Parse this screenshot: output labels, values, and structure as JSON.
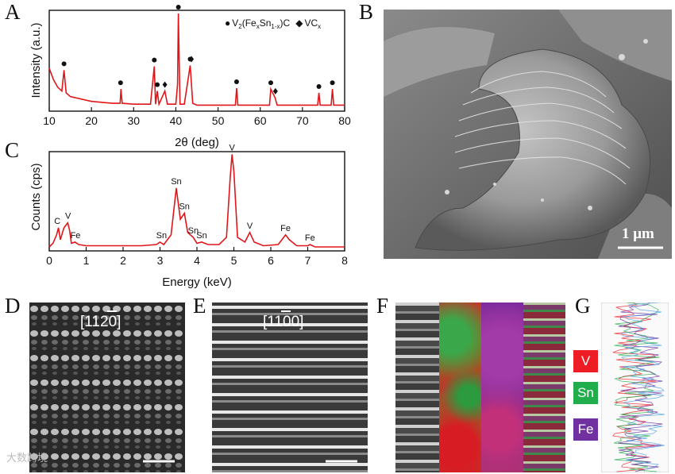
{
  "panels": {
    "A": "A",
    "B": "B",
    "C": "C",
    "D": "D",
    "E": "E",
    "F": "F",
    "G": "G"
  },
  "xrd": {
    "ylabel": "Intensity (a.u.)",
    "xlabel": "2θ (deg)",
    "xticks": [
      "10",
      "20",
      "30",
      "40",
      "50",
      "60",
      "70",
      "80"
    ],
    "legend": {
      "bullet": "●",
      "phase1_main": "V",
      "phase1_sub1": "2",
      "phase1_mid": "(Fe",
      "phase1_sub2": "x",
      "phase1_mid2": "Sn",
      "phase1_sub3": "1-x",
      "phase1_end": ")C",
      "diamond": "◆",
      "phase2_main": "VC",
      "phase2_sub": "x"
    }
  },
  "eds": {
    "ylabel": "Counts (cps)",
    "xlabel": "Energy (keV)",
    "xticks": [
      "0",
      "1",
      "2",
      "3",
      "4",
      "5",
      "6",
      "7",
      "8"
    ],
    "peak_labels": [
      {
        "text": "C",
        "e": 0.22
      },
      {
        "text": "V",
        "e": 0.51
      },
      {
        "text": "Fe",
        "e": 0.71
      },
      {
        "text": "Sn",
        "e": 3.04
      },
      {
        "text": "Sn",
        "e": 3.44
      },
      {
        "text": "Sn",
        "e": 3.66
      },
      {
        "text": "Sn",
        "e": 3.9
      },
      {
        "text": "Sn",
        "e": 4.13
      },
      {
        "text": "V",
        "e": 4.95
      },
      {
        "text": "V",
        "e": 5.43
      },
      {
        "text": "Fe",
        "e": 6.4
      },
      {
        "text": "Fe",
        "e": 7.06
      }
    ]
  },
  "sem": {
    "scale_label": "1 μm"
  },
  "stem": {
    "d_zone_axis": "[1120]",
    "e_zone_axis": "[1100]"
  },
  "elements": {
    "v": "V",
    "sn": "Sn",
    "fe": "Fe"
  },
  "colors": {
    "curve": "#e0161a",
    "v": "#ee1c25",
    "sn": "#1fae4b",
    "fe": "#7030a0"
  },
  "watermark": "大数跨境",
  "chart_data": [
    {
      "type": "line",
      "title": "",
      "xlabel": "2θ (deg)",
      "ylabel": "Intensity (a.u.)",
      "xlim": [
        10,
        80
      ],
      "x": [
        10,
        11,
        12,
        13,
        13.5,
        14,
        15,
        20,
        25,
        26.8,
        27,
        27.3,
        30,
        34,
        34.9,
        35.2,
        35.6,
        36,
        37.4,
        38,
        40,
        40.4,
        40.6,
        40.9,
        41,
        42,
        43.4,
        43.7,
        44,
        45,
        50,
        54.1,
        54.4,
        54.7,
        55,
        60,
        62.2,
        62.5,
        63.5,
        64,
        70,
        73.6,
        73.9,
        74.2,
        76.8,
        77.1,
        77.4,
        80
      ],
      "y": [
        0.42,
        0.3,
        0.22,
        0.18,
        0.4,
        0.16,
        0.12,
        0.07,
        0.05,
        0.05,
        0.2,
        0.05,
        0.04,
        0.04,
        0.44,
        0.04,
        0.18,
        0.04,
        0.18,
        0.04,
        0.04,
        0.25,
        1.0,
        0.25,
        0.04,
        0.04,
        0.45,
        0.25,
        0.05,
        0.03,
        0.03,
        0.03,
        0.21,
        0.03,
        0.03,
        0.03,
        0.03,
        0.2,
        0.11,
        0.03,
        0.03,
        0.03,
        0.16,
        0.03,
        0.03,
        0.2,
        0.03,
        0.03
      ],
      "markers": [
        {
          "phase": "V2(FexSn1-x)C",
          "x": [
            13.5,
            26.9,
            34.9,
            35.6,
            40.6,
            43.4,
            54.4,
            62.5,
            73.9,
            77.1
          ]
        },
        {
          "phase": "VCx",
          "x": [
            37.4,
            43.7,
            63.6
          ]
        }
      ]
    },
    {
      "type": "line",
      "title": "",
      "xlabel": "Energy (keV)",
      "ylabel": "Counts (cps)",
      "xlim": [
        0,
        8
      ],
      "x": [
        0,
        0.1,
        0.2,
        0.25,
        0.3,
        0.4,
        0.5,
        0.55,
        0.6,
        0.7,
        0.8,
        1,
        1.5,
        2,
        2.5,
        2.9,
        3.0,
        3.1,
        3.3,
        3.44,
        3.55,
        3.66,
        3.75,
        3.9,
        4.0,
        4.13,
        4.3,
        4.6,
        4.8,
        4.9,
        4.95,
        5.0,
        5.1,
        5.3,
        5.43,
        5.55,
        5.8,
        6.2,
        6.35,
        6.4,
        6.5,
        6.7,
        7.0,
        7.06,
        7.2,
        7.5,
        8
      ],
      "y": [
        0.02,
        0.05,
        0.12,
        0.18,
        0.08,
        0.18,
        0.22,
        0.16,
        0.05,
        0.06,
        0.04,
        0.03,
        0.03,
        0.03,
        0.03,
        0.04,
        0.06,
        0.04,
        0.12,
        0.51,
        0.25,
        0.3,
        0.14,
        0.1,
        0.05,
        0.06,
        0.04,
        0.04,
        0.1,
        0.6,
        0.79,
        0.65,
        0.1,
        0.06,
        0.14,
        0.06,
        0.03,
        0.04,
        0.1,
        0.12,
        0.08,
        0.03,
        0.03,
        0.04,
        0.02,
        0.02,
        0.02
      ]
    }
  ]
}
